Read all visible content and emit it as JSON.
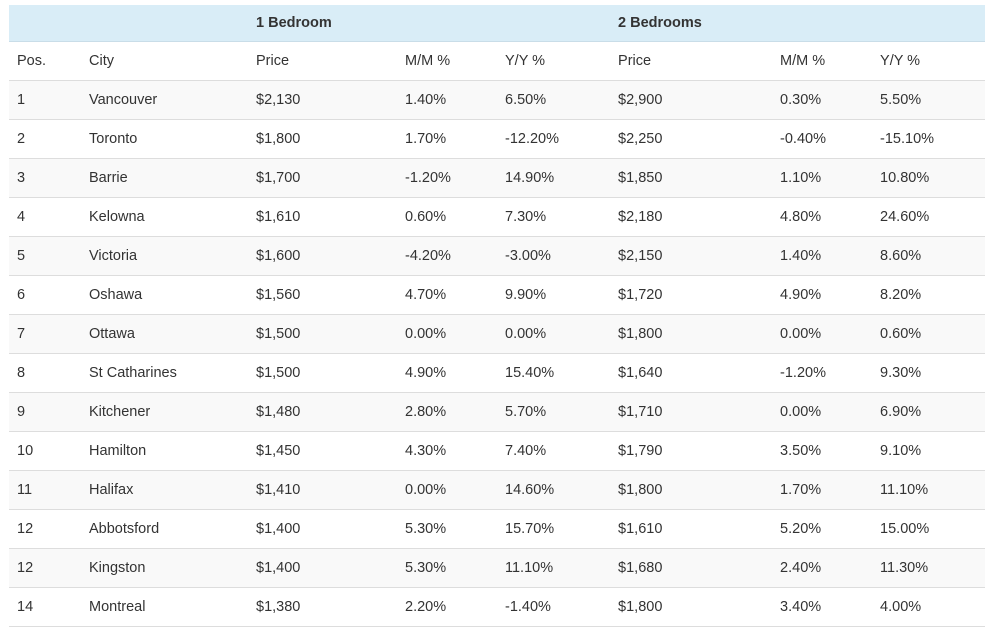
{
  "table": {
    "group_headers": {
      "one_bedroom": "1 Bedroom",
      "two_bedrooms": "2 Bedrooms"
    },
    "columns": [
      "Pos.",
      "City",
      "Price",
      "M/M %",
      "Y/Y %",
      "Price",
      "M/M %",
      "Y/Y %"
    ],
    "rows": [
      [
        "1",
        "Vancouver",
        "$2,130",
        "1.40%",
        "6.50%",
        "$2,900",
        "0.30%",
        "5.50%"
      ],
      [
        "2",
        "Toronto",
        "$1,800",
        "1.70%",
        "-12.20%",
        "$2,250",
        "-0.40%",
        "-15.10%"
      ],
      [
        "3",
        "Barrie",
        "$1,700",
        "-1.20%",
        "14.90%",
        "$1,850",
        "1.10%",
        "10.80%"
      ],
      [
        "4",
        "Kelowna",
        "$1,610",
        "0.60%",
        "7.30%",
        "$2,180",
        "4.80%",
        "24.60%"
      ],
      [
        "5",
        "Victoria",
        "$1,600",
        "-4.20%",
        "-3.00%",
        "$2,150",
        "1.40%",
        "8.60%"
      ],
      [
        "6",
        "Oshawa",
        "$1,560",
        "4.70%",
        "9.90%",
        "$1,720",
        "4.90%",
        "8.20%"
      ],
      [
        "7",
        "Ottawa",
        "$1,500",
        "0.00%",
        "0.00%",
        "$1,800",
        "0.00%",
        "0.60%"
      ],
      [
        "8",
        "St Catharines",
        "$1,500",
        "4.90%",
        "15.40%",
        "$1,640",
        "-1.20%",
        "9.30%"
      ],
      [
        "9",
        "Kitchener",
        "$1,480",
        "2.80%",
        "5.70%",
        "$1,710",
        "0.00%",
        "6.90%"
      ],
      [
        "10",
        "Hamilton",
        "$1,450",
        "4.30%",
        "7.40%",
        "$1,790",
        "3.50%",
        "9.10%"
      ],
      [
        "11",
        "Halifax",
        "$1,410",
        "0.00%",
        "14.60%",
        "$1,800",
        "1.70%",
        "11.10%"
      ],
      [
        "12",
        "Abbotsford",
        "$1,400",
        "5.30%",
        "15.70%",
        "$1,610",
        "5.20%",
        "15.00%"
      ],
      [
        "12",
        "Kingston",
        "$1,400",
        "5.30%",
        "11.10%",
        "$1,680",
        "2.40%",
        "11.30%"
      ],
      [
        "14",
        "Montreal",
        "$1,380",
        "2.20%",
        "-1.40%",
        "$1,800",
        "3.40%",
        "4.00%"
      ]
    ]
  },
  "colors": {
    "group_header_bg": "#d9edf7",
    "stripe_bg": "#f9f9f9",
    "border": "#dddddd",
    "text": "#333333"
  }
}
